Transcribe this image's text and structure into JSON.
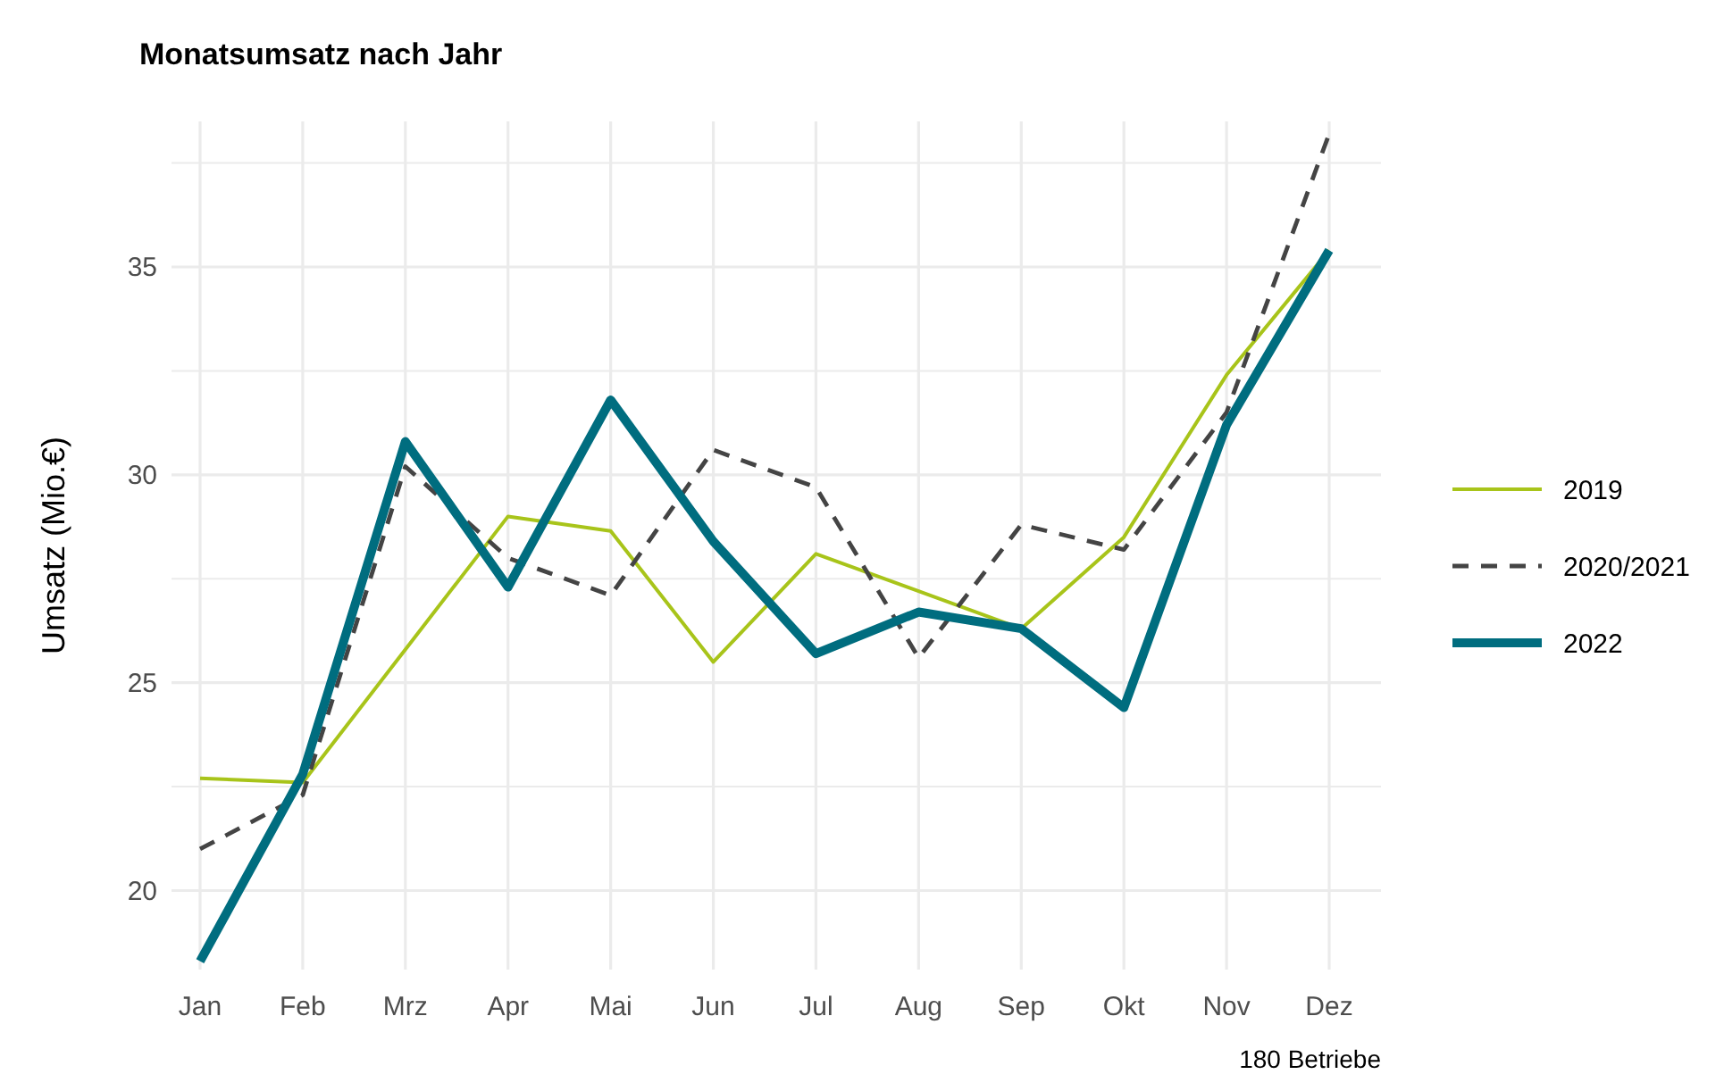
{
  "chart_data": {
    "type": "line",
    "title": "Monatsumsatz nach Jahr",
    "ylabel": "Umsatz (Mio.€)",
    "annotations": [
      "180 Betriebe"
    ],
    "categories": [
      "Jan",
      "Feb",
      "Mrz",
      "Apr",
      "Mai",
      "Jun",
      "Jul",
      "Aug",
      "Sep",
      "Okt",
      "Nov",
      "Dez"
    ],
    "ylim": [
      18.1,
      38.5
    ],
    "yticks": [
      20,
      {
        "value": 22.5,
        "label": null
      },
      25,
      {
        "value": 27.5,
        "label": null
      },
      30,
      {
        "value": 32.5,
        "label": null
      },
      35,
      {
        "value": 37.5,
        "label": null
      }
    ],
    "grid": true,
    "legend": "right",
    "series": [
      {
        "name": "2019",
        "color": "#a8c41a",
        "line_style": "solid",
        "values": [
          22.7,
          22.6,
          25.8,
          29.0,
          28.65,
          25.5,
          28.1,
          27.2,
          26.3,
          28.5,
          32.4,
          35.4
        ]
      },
      {
        "name": "2020/2021",
        "color": "#444444",
        "line_style": "dashed",
        "values": [
          21.0,
          22.3,
          30.2,
          28.0,
          27.1,
          30.6,
          29.7,
          25.6,
          28.8,
          28.2,
          31.5,
          38.2
        ]
      },
      {
        "name": "2022",
        "color": "#006d7f",
        "line_style": "solid",
        "values": [
          18.3,
          22.8,
          30.8,
          27.3,
          31.8,
          28.4,
          25.7,
          26.7,
          26.3,
          24.4,
          31.2,
          35.4
        ]
      }
    ]
  }
}
